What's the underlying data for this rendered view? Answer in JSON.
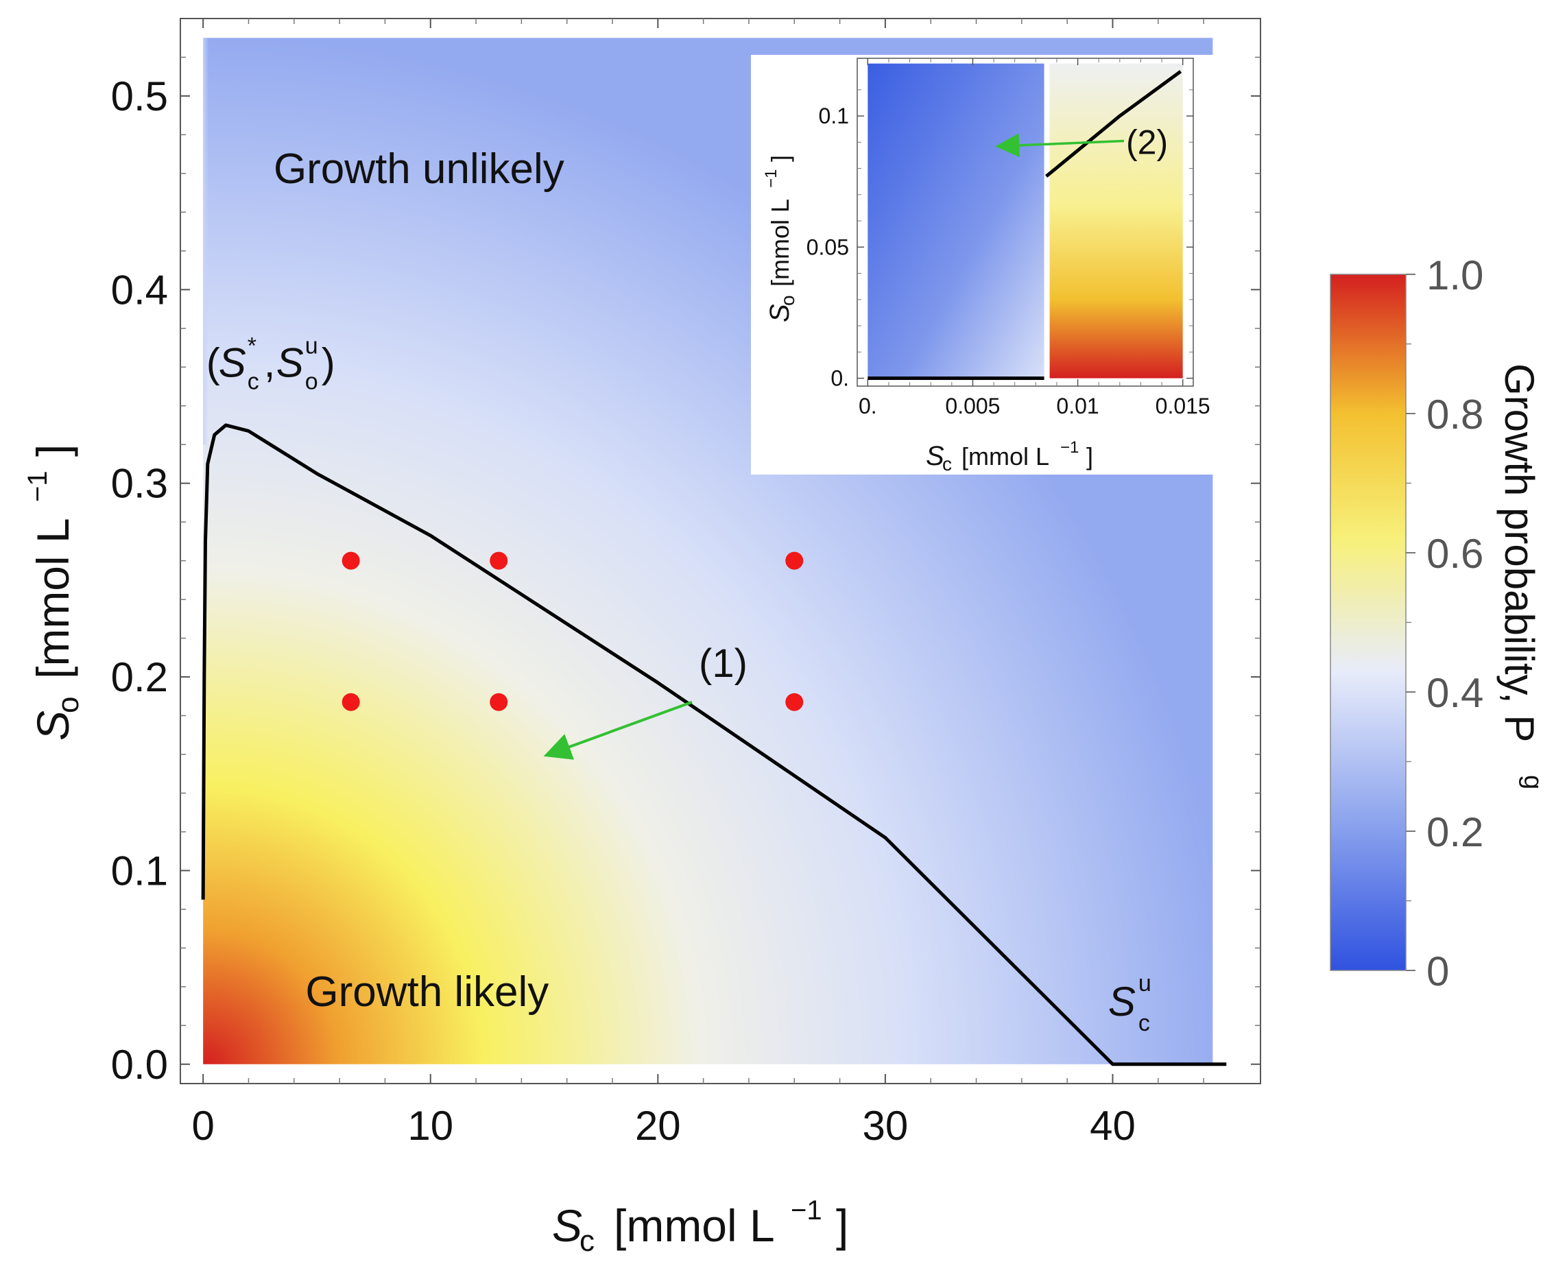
{
  "chart_data": [
    {
      "type": "heatmap",
      "panel": "main",
      "xlabel_symbol": "S",
      "xlabel_sub": "c",
      "xlabel_unit": "[mmol L",
      "xlabel_exp": "−1",
      "ylabel_symbol": "S",
      "ylabel_sub": "o",
      "ylabel_unit": "[mmol L",
      "ylabel_exp": "−1",
      "xlim": [
        -1,
        46.5
      ],
      "ylim": [
        -0.01,
        0.54
      ],
      "x_ticks": [
        0,
        10,
        20,
        30,
        40
      ],
      "x_tick_labels": [
        "0",
        "10",
        "20",
        "30",
        "40"
      ],
      "y_ticks": [
        0.0,
        0.1,
        0.2,
        0.3,
        0.4,
        0.5
      ],
      "y_tick_labels": [
        "0.0",
        "0.1",
        "0.2",
        "0.3",
        "0.4",
        "0.5"
      ],
      "boundary_curve": [
        [
          0,
          0.085
        ],
        [
          0.05,
          0.2
        ],
        [
          0.1,
          0.27
        ],
        [
          0.2,
          0.31
        ],
        [
          0.5,
          0.325
        ],
        [
          1,
          0.33
        ],
        [
          2,
          0.327
        ],
        [
          5,
          0.305
        ],
        [
          10,
          0.273
        ],
        [
          20,
          0.197
        ],
        [
          30,
          0.117
        ],
        [
          40,
          0.0
        ],
        [
          45,
          0.0
        ]
      ],
      "points": [
        {
          "x": 6.5,
          "y": 0.26
        },
        {
          "x": 13,
          "y": 0.26
        },
        {
          "x": 26,
          "y": 0.26
        },
        {
          "x": 6.5,
          "y": 0.187
        },
        {
          "x": 13,
          "y": 0.187
        },
        {
          "x": 26,
          "y": 0.187
        }
      ],
      "region_labels": {
        "unlikely": "Growth unlikely",
        "likely": "Growth likely"
      },
      "annotations": {
        "arrow_label": "(1)",
        "peak_label_left": "(",
        "peak_label_sc": "S",
        "peak_label_sc_sup": "*",
        "peak_label_sc_sub": "c",
        "peak_label_comma": ",",
        "peak_label_so": "S",
        "peak_label_so_sup": "u",
        "peak_label_so_sub": "o",
        "peak_label_right": ")",
        "endpoint_symbol": "S",
        "endpoint_sup": "u",
        "endpoint_sub": "c"
      },
      "arrow_1": {
        "from": [
          21.5,
          0.187
        ],
        "to": [
          15.2,
          0.16
        ]
      },
      "peak_point": [
        1,
        0.33
      ],
      "endpoint": [
        40,
        0.0
      ]
    },
    {
      "type": "heatmap",
      "panel": "inset",
      "xlabel_symbol": "S",
      "xlabel_sub": "c",
      "xlabel_unit": "[mmol L",
      "xlabel_exp": "−1",
      "ylabel_symbol": "S",
      "ylabel_sub": "o",
      "ylabel_unit": "[mmol L",
      "ylabel_exp": "−1",
      "xlim": [
        -0.0005,
        0.0155
      ],
      "ylim": [
        -0.003,
        0.122
      ],
      "x_ticks": [
        0,
        0.005,
        0.01,
        0.015
      ],
      "x_tick_labels": [
        "0.",
        "0.005",
        "0.01",
        "0.015"
      ],
      "y_ticks": [
        0,
        0.05,
        0.1
      ],
      "y_tick_labels": [
        "0.",
        "0.05",
        "0.1"
      ],
      "break_x": 0.0084,
      "curve_bottom": [
        [
          0,
          0.0
        ],
        [
          0.0084,
          0.0
        ]
      ],
      "curve_top": [
        [
          0.0085,
          0.077
        ],
        [
          0.012,
          0.1
        ],
        [
          0.0149,
          0.117
        ]
      ],
      "arrow_label": "(2)",
      "arrow_2": {
        "from": [
          0.0122,
          0.0905
        ],
        "to": [
          0.0063,
          0.0885
        ]
      }
    }
  ],
  "colorbar": {
    "title": "Growth probability, P",
    "title_sub": "g",
    "ticks": [
      0,
      0.2,
      0.4,
      0.6,
      0.8,
      1.0
    ],
    "tick_labels": [
      "0",
      "0.2",
      "0.4",
      "0.6",
      "0.8",
      "1.0"
    ],
    "colors": [
      "#2f52e0",
      "#8fa6ee",
      "#e8ecfa",
      "#f7f07a",
      "#f3c030",
      "#d42020"
    ]
  }
}
